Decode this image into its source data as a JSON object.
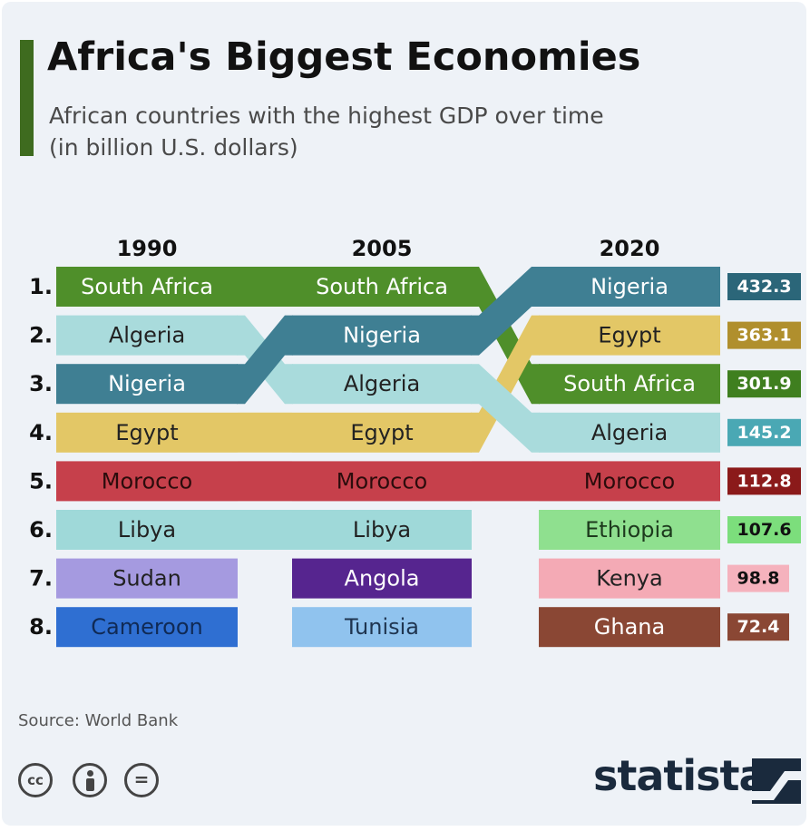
{
  "header": {
    "title": "Africa's Biggest Economies",
    "subtitle_line1": "African countries with the highest GDP over time",
    "subtitle_line2": "(in billion U.S. dollars)"
  },
  "footer": {
    "source": "Source: World Bank",
    "brand": "statista",
    "license_icons": [
      "cc-icon",
      "attribution-icon",
      "no-derivatives-icon"
    ]
  },
  "chart_data": {
    "type": "table",
    "title": "Africa's Biggest Economies",
    "years": [
      "1990",
      "2005",
      "2020"
    ],
    "ranks": [
      "1.",
      "2.",
      "3.",
      "4.",
      "5.",
      "6.",
      "7.",
      "8."
    ],
    "rankings": {
      "1990": [
        "South Africa",
        "Algeria",
        "Nigeria",
        "Egypt",
        "Morocco",
        "Libya",
        "Sudan",
        "Cameroon"
      ],
      "2005": [
        "South Africa",
        "Nigeria",
        "Algeria",
        "Egypt",
        "Morocco",
        "Libya",
        "Angola",
        "Tunisia"
      ],
      "2020": [
        "Nigeria",
        "Egypt",
        "South Africa",
        "Algeria",
        "Morocco",
        "Ethiopia",
        "Kenya",
        "Ghana"
      ]
    },
    "gdp_2020": {
      "Nigeria": "432.3",
      "Egypt": "363.1",
      "South Africa": "301.9",
      "Algeria": "145.2",
      "Morocco": "112.8",
      "Ethiopia": "107.6",
      "Kenya": "98.8",
      "Ghana": "72.4"
    },
    "colors": {
      "South Africa": "#4f8f2a",
      "Algeria": "#a9dbdc",
      "Nigeria": "#3f7f93",
      "Egypt": "#e3c766",
      "Morocco": "#c6404b",
      "Libya": "#9fd9d9",
      "Sudan": "#a59ae0",
      "Cameroon": "#2f6fd2",
      "Angola": "#56258f",
      "Tunisia": "#90c3ee",
      "Ethiopia": "#8fe08f",
      "Kenya": "#f4aab5",
      "Ghana": "#8a4734"
    },
    "value_colors": {
      "Nigeria": "#2b6679",
      "Egypt": "#b08f2d",
      "South Africa": "#3f7f1f",
      "Algeria": "#4aa8b4",
      "Morocco": "#8b1a1a",
      "Ethiopia": "#7cde7c",
      "Kenya": "#f5b2bd",
      "Ghana": "#8a4734"
    },
    "label_colors": {
      "South Africa": "#ffffff",
      "Algeria": "#222222",
      "Nigeria": "#ffffff",
      "Egypt": "#222222",
      "Morocco": "#2b0c0c",
      "Libya": "#222222",
      "Sudan": "#222222",
      "Cameroon": "#102a55",
      "Angola": "#ffffff",
      "Tunisia": "#1f3550",
      "Ethiopia": "#1d3a1d",
      "Kenya": "#222222",
      "Ghana": "#ffffff"
    },
    "value_text_colors": {
      "Nigeria": "#ffffff",
      "Egypt": "#ffffff",
      "South Africa": "#ffffff",
      "Algeria": "#ffffff",
      "Morocco": "#ffffff",
      "Ethiopia": "#111111",
      "Kenya": "#111111",
      "Ghana": "#ffffff"
    }
  }
}
